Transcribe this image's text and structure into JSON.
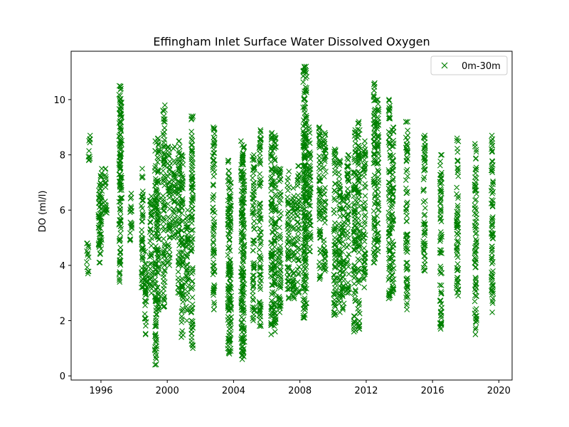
{
  "chart_data": {
    "type": "scatter",
    "title": "Effingham Inlet Surface Water Dissolved Oxygen",
    "xlabel": "",
    "ylabel": "DO (ml/l)",
    "xlim": [
      1994.2,
      2020.8
    ],
    "ylim": [
      -0.15,
      11.75
    ],
    "x_ticks": [
      1996,
      2000,
      2004,
      2008,
      2012,
      2016,
      2020
    ],
    "x_tick_labels": [
      "1996",
      "2000",
      "2004",
      "2008",
      "2012",
      "2016",
      "2020"
    ],
    "y_ticks": [
      0,
      2,
      4,
      6,
      8,
      10
    ],
    "y_tick_labels": [
      "0",
      "2",
      "4",
      "6",
      "8",
      "10"
    ],
    "grid": false,
    "legend": {
      "placement": "top-right",
      "entries": [
        "0m-30m"
      ]
    },
    "marker": "x",
    "color": "#008000",
    "series": [
      {
        "name": "0m-30m",
        "ranges": [
          [
            1995.2,
            3.7,
            4.8
          ],
          [
            1995.3,
            7.8,
            8.7
          ],
          [
            1995.9,
            4.1,
            6.9
          ],
          [
            1996.0,
            4.6,
            7.5
          ],
          [
            1996.3,
            5.9,
            7.5
          ],
          [
            1997.15,
            3.4,
            10.5
          ],
          [
            1997.2,
            5.6,
            9.9
          ],
          [
            1997.8,
            4.9,
            6.6
          ],
          [
            1998.5,
            3.2,
            7.5
          ],
          [
            1998.7,
            1.5,
            4.5
          ],
          [
            1999.0,
            3.0,
            6.5
          ],
          [
            1999.3,
            0.4,
            8.5
          ],
          [
            1999.45,
            2.4,
            8.6
          ],
          [
            1999.8,
            2.5,
            9.8
          ],
          [
            2000.1,
            4.0,
            8.3
          ],
          [
            2000.4,
            5.0,
            8.3
          ],
          [
            2000.7,
            3.0,
            8.5
          ],
          [
            2000.9,
            1.4,
            8.0
          ],
          [
            2001.2,
            2.0,
            6.0
          ],
          [
            2001.5,
            1.0,
            9.4
          ],
          [
            2002.8,
            2.4,
            9.0
          ],
          [
            2003.7,
            0.8,
            7.8
          ],
          [
            2003.8,
            0.9,
            7.0
          ],
          [
            2004.5,
            0.6,
            8.5
          ],
          [
            2004.6,
            0.7,
            8.3
          ],
          [
            2005.2,
            2.0,
            8.0
          ],
          [
            2005.6,
            1.8,
            8.9
          ],
          [
            2006.3,
            1.5,
            8.8
          ],
          [
            2006.5,
            1.6,
            8.7
          ],
          [
            2006.8,
            2.3,
            7.5
          ],
          [
            2007.3,
            2.8,
            7.4
          ],
          [
            2007.6,
            2.8,
            6.8
          ],
          [
            2007.9,
            3.0,
            7.6
          ],
          [
            2008.25,
            2.1,
            11.2
          ],
          [
            2008.35,
            2.2,
            11.2
          ],
          [
            2008.6,
            4.5,
            9.0
          ],
          [
            2009.2,
            3.5,
            9.0
          ],
          [
            2009.5,
            3.8,
            8.8
          ],
          [
            2010.1,
            2.2,
            8.2
          ],
          [
            2010.4,
            2.3,
            7.8
          ],
          [
            2010.6,
            2.4,
            6.5
          ],
          [
            2010.9,
            3.0,
            8.0
          ],
          [
            2011.3,
            1.6,
            8.9
          ],
          [
            2011.55,
            1.7,
            9.2
          ],
          [
            2011.9,
            3.2,
            8.5
          ],
          [
            2012.5,
            4.1,
            10.6
          ],
          [
            2012.7,
            4.5,
            10.0
          ],
          [
            2013.4,
            2.8,
            10.0
          ],
          [
            2013.6,
            3.0,
            9.0
          ],
          [
            2014.45,
            2.4,
            9.2
          ],
          [
            2015.5,
            3.8,
            8.7
          ],
          [
            2016.5,
            1.7,
            8.0
          ],
          [
            2017.5,
            2.9,
            8.6
          ],
          [
            2018.6,
            1.5,
            8.4
          ],
          [
            2019.6,
            2.3,
            8.7
          ]
        ]
      }
    ]
  }
}
